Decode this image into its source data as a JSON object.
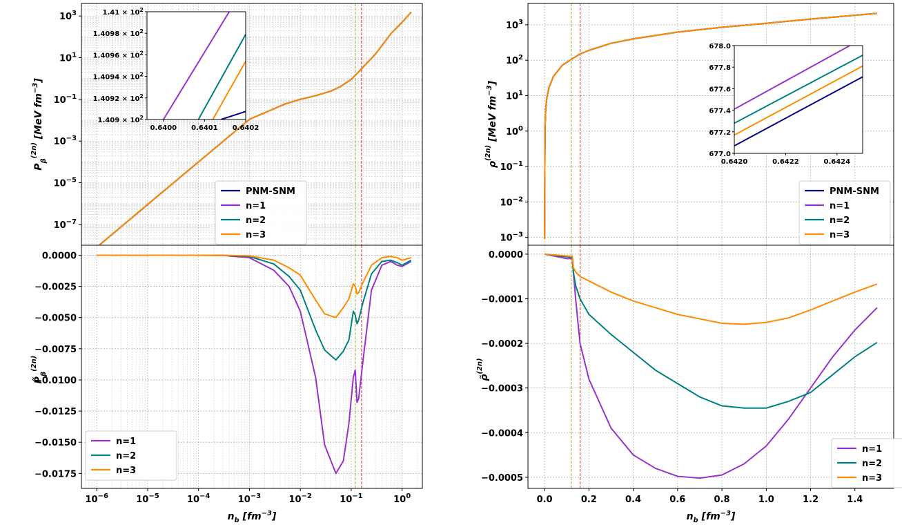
{
  "colors": {
    "pnm_snm": "#00008b",
    "n1": "#9932cc",
    "n2": "#008080",
    "n3": "#ff8c00",
    "vline_olive": "#9aa020",
    "vline_red": "#e02020",
    "grid": "#b0b0b0"
  },
  "vlines_nb": {
    "olive": 0.12,
    "red": 0.16
  },
  "panels": {
    "top_left": {
      "ylabel": "P_β^(2n) [MeV fm^-3]",
      "xlim": [
        5e-07,
        2.5
      ],
      "ylim": [
        1e-08,
        4000
      ],
      "xscale": "log",
      "yscale": "log",
      "ytick_values": [
        1e-07,
        1e-05,
        0.001,
        0.1,
        10,
        1000
      ],
      "ytick_labels": [
        "10-7",
        "10-5",
        "10-3",
        "10-1",
        "101",
        "103"
      ],
      "legend": [
        "PNM-SNM",
        "n=1",
        "n=2",
        "n=3"
      ]
    },
    "bottom_left": {
      "ylabel": "P̃_β^(2n)",
      "xlabel": "n_b [fm^-3]",
      "xlim": [
        5e-07,
        2.5
      ],
      "ylim": [
        -0.0187,
        0.0008
      ],
      "xscale": "log",
      "ytick_labels": [
        "0.0000",
        "−0.0025",
        "−0.0050",
        "−0.0075",
        "−0.0100",
        "−0.0125",
        "−0.0150",
        "−0.0175"
      ],
      "xtick_values": [
        1e-06,
        1e-05,
        0.0001,
        0.001,
        0.01,
        0.1,
        1
      ],
      "xtick_labels": [
        "10-6",
        "10-5",
        "10-4",
        "10-3",
        "10-2",
        "10-1",
        "100"
      ],
      "legend": [
        "n=1",
        "n=2",
        "n=3"
      ]
    },
    "top_right": {
      "ylabel": "ρ^(2n) [MeV fm^-3]",
      "xlim": [
        -0.075,
        1.575
      ],
      "ylim": [
        0.0006,
        4000
      ],
      "yscale": "log",
      "ytick_values": [
        0.001,
        0.01,
        0.1,
        1,
        10,
        100,
        1000
      ],
      "ytick_labels": [
        "10-3",
        "10-2",
        "10-1",
        "100",
        "101",
        "102",
        "103"
      ],
      "legend": [
        "PNM-SNM",
        "n=1",
        "n=2",
        "n=3"
      ]
    },
    "bottom_right": {
      "ylabel": "ρ̃^(2n)",
      "xlabel": "n_b [fm^-3]",
      "xlim": [
        -0.075,
        1.575
      ],
      "ylim": [
        -0.000525,
        2e-05
      ],
      "ytick_labels": [
        "0.0000",
        "−0.0001",
        "−0.0002",
        "−0.0003",
        "−0.0004",
        "−0.0005"
      ],
      "xtick_labels": [
        "0.0",
        "0.2",
        "0.4",
        "0.6",
        "0.8",
        "1.0",
        "1.2",
        "1.4"
      ],
      "legend": [
        "n=1",
        "n=2",
        "n=3"
      ]
    }
  },
  "insets": {
    "left": {
      "xlim": [
        0.63996,
        0.6402
      ],
      "ylim": [
        140.9,
        141.0
      ],
      "xtick_labels": [
        "0.6400",
        "0.6401",
        "0.6402"
      ],
      "ytick_labels": [
        "1.409 × 102",
        "1.4092 × 102",
        "1.4094 × 102",
        "1.4096 × 102",
        "1.4098 × 102",
        "1.41 × 102"
      ]
    },
    "right": {
      "xlim": [
        0.642,
        0.6425
      ],
      "ylim": [
        677.0,
        678.0
      ],
      "xtick_labels": [
        "0.6420",
        "0.6422",
        "0.6424"
      ],
      "ytick_labels": [
        "677.0",
        "677.2",
        "677.4",
        "677.6",
        "677.8",
        "678.0"
      ]
    }
  },
  "chart_data": [
    {
      "type": "line",
      "panel": "top_left",
      "xscale": "log",
      "yscale": "log",
      "series": [
        {
          "name": "PNM-SNM",
          "x": [
            1e-06,
            1e-05,
            0.0001,
            0.001,
            0.005,
            0.01,
            0.02,
            0.04,
            0.06,
            0.1,
            0.15,
            0.3,
            0.6,
            1.0,
            1.5
          ],
          "y": [
            8e-09,
            9e-07,
            0.0001,
            0.011,
            0.06,
            0.1,
            0.15,
            0.25,
            0.4,
            0.9,
            2.5,
            15,
            140,
            500,
            1500
          ]
        },
        {
          "name": "n=1",
          "x": [
            1e-06,
            1e-05,
            0.0001,
            0.001,
            0.005,
            0.01,
            0.02,
            0.04,
            0.06,
            0.1,
            0.15,
            0.3,
            0.6,
            1.0,
            1.5
          ],
          "y": [
            8e-09,
            9e-07,
            0.0001,
            0.011,
            0.06,
            0.1,
            0.15,
            0.25,
            0.4,
            0.9,
            2.5,
            15,
            140,
            500,
            1500
          ]
        },
        {
          "name": "n=2",
          "x": [
            1e-06,
            1e-05,
            0.0001,
            0.001,
            0.005,
            0.01,
            0.02,
            0.04,
            0.06,
            0.1,
            0.15,
            0.3,
            0.6,
            1.0,
            1.5
          ],
          "y": [
            8e-09,
            9e-07,
            0.0001,
            0.011,
            0.06,
            0.1,
            0.15,
            0.25,
            0.4,
            0.9,
            2.5,
            15,
            140,
            500,
            1500
          ]
        },
        {
          "name": "n=3",
          "x": [
            1e-06,
            1e-05,
            0.0001,
            0.001,
            0.005,
            0.01,
            0.02,
            0.04,
            0.06,
            0.1,
            0.15,
            0.3,
            0.6,
            1.0,
            1.5
          ],
          "y": [
            8e-09,
            9e-07,
            0.0001,
            0.011,
            0.06,
            0.1,
            0.15,
            0.25,
            0.4,
            0.9,
            2.5,
            15,
            140,
            500,
            1500
          ]
        }
      ]
    },
    {
      "type": "line",
      "panel": "inset_left",
      "series": [
        {
          "name": "PNM-SNM",
          "x": [
            0.64014,
            0.6402
          ],
          "y": [
            140.9,
            140.9075
          ]
        },
        {
          "name": "n=1",
          "x": [
            0.64,
            0.64016
          ],
          "y": [
            140.9,
            141.0
          ]
        },
        {
          "name": "n=2",
          "x": [
            0.640085,
            0.6402
          ],
          "y": [
            140.9,
            140.979
          ]
        },
        {
          "name": "n=3",
          "x": [
            0.64012,
            0.6402
          ],
          "y": [
            140.9,
            140.954
          ]
        }
      ]
    },
    {
      "type": "line",
      "panel": "bottom_left",
      "xscale": "log",
      "series": [
        {
          "name": "n=1",
          "x": [
            1e-06,
            1e-05,
            0.0001,
            0.0003,
            0.001,
            0.003,
            0.006,
            0.01,
            0.02,
            0.03,
            0.05,
            0.07,
            0.09,
            0.11,
            0.12,
            0.13,
            0.14,
            0.17,
            0.25,
            0.4,
            0.6,
            0.8,
            1.0,
            1.5
          ],
          "y": [
            0,
            0,
            0,
            -2e-05,
            -0.0002,
            -0.0012,
            -0.0025,
            -0.0045,
            -0.0098,
            -0.0152,
            -0.0175,
            -0.0165,
            -0.0135,
            -0.0098,
            -0.0092,
            -0.0118,
            -0.0115,
            -0.0085,
            -0.0028,
            -0.0008,
            -0.0005,
            -0.0008,
            -0.0009,
            -0.0005
          ]
        },
        {
          "name": "n=2",
          "x": [
            1e-06,
            1e-05,
            0.0001,
            0.0003,
            0.001,
            0.003,
            0.006,
            0.01,
            0.02,
            0.03,
            0.05,
            0.07,
            0.09,
            0.11,
            0.12,
            0.13,
            0.14,
            0.17,
            0.25,
            0.4,
            0.6,
            0.8,
            1.0,
            1.5
          ],
          "y": [
            0,
            0,
            0,
            -1e-05,
            -0.0001,
            -0.0007,
            -0.0017,
            -0.0028,
            -0.006,
            -0.0076,
            -0.0084,
            -0.0077,
            -0.0068,
            -0.0045,
            -0.0048,
            -0.0055,
            -0.0052,
            -0.0038,
            -0.0015,
            -0.0005,
            -0.0004,
            -0.0006,
            -0.0008,
            -0.0004
          ]
        },
        {
          "name": "n=3",
          "x": [
            1e-06,
            1e-05,
            0.0001,
            0.0003,
            0.001,
            0.003,
            0.006,
            0.01,
            0.02,
            0.03,
            0.05,
            0.07,
            0.09,
            0.11,
            0.12,
            0.13,
            0.14,
            0.17,
            0.25,
            0.4,
            0.6,
            0.8,
            1.0,
            1.5
          ],
          "y": [
            0,
            0,
            0,
            -1e-05,
            -5e-05,
            -0.0004,
            -0.001,
            -0.0016,
            -0.0036,
            -0.0047,
            -0.005,
            -0.0042,
            -0.0035,
            -0.0023,
            -0.0025,
            -0.0031,
            -0.003,
            -0.0022,
            -0.0008,
            -0.0002,
            -0.0001,
            -0.0002,
            -0.0004,
            -0.0002
          ]
        }
      ]
    },
    {
      "type": "line",
      "panel": "top_right",
      "yscale": "log",
      "series": [
        {
          "name": "PNM-SNM",
          "x": [
            0.0,
            0.0,
            0.002,
            0.005,
            0.01,
            0.02,
            0.04,
            0.08,
            0.12,
            0.16,
            0.2,
            0.3,
            0.4,
            0.6,
            0.8,
            1.0,
            1.2,
            1.5
          ],
          "y": [
            0.0009,
            0.001,
            1.2,
            4,
            8.5,
            17,
            35,
            72,
            105,
            150,
            190,
            300,
            400,
            620,
            850,
            1100,
            1450,
            2100
          ]
        },
        {
          "name": "n=1",
          "x": [
            0.0,
            0.0,
            0.002,
            0.005,
            0.01,
            0.02,
            0.04,
            0.08,
            0.12,
            0.16,
            0.2,
            0.3,
            0.4,
            0.6,
            0.8,
            1.0,
            1.2,
            1.5
          ],
          "y": [
            0.0009,
            0.001,
            1.2,
            4,
            8.5,
            17,
            35,
            72,
            105,
            150,
            190,
            300,
            400,
            620,
            850,
            1100,
            1450,
            2100
          ]
        },
        {
          "name": "n=2",
          "x": [
            0.0,
            0.0,
            0.002,
            0.005,
            0.01,
            0.02,
            0.04,
            0.08,
            0.12,
            0.16,
            0.2,
            0.3,
            0.4,
            0.6,
            0.8,
            1.0,
            1.2,
            1.5
          ],
          "y": [
            0.0009,
            0.001,
            1.2,
            4,
            8.5,
            17,
            35,
            72,
            105,
            150,
            190,
            300,
            400,
            620,
            850,
            1100,
            1450,
            2100
          ]
        },
        {
          "name": "n=3",
          "x": [
            0.0,
            0.0,
            0.002,
            0.005,
            0.01,
            0.02,
            0.04,
            0.08,
            0.12,
            0.16,
            0.2,
            0.3,
            0.4,
            0.6,
            0.8,
            1.0,
            1.2,
            1.5
          ],
          "y": [
            0.0009,
            0.001,
            1.2,
            4,
            8.5,
            17,
            35,
            72,
            105,
            150,
            190,
            300,
            400,
            620,
            850,
            1100,
            1450,
            2100
          ]
        }
      ]
    },
    {
      "type": "line",
      "panel": "inset_right",
      "series": [
        {
          "name": "PNM-SNM",
          "x": [
            0.642,
            0.6425
          ],
          "y": [
            677.07,
            677.71
          ]
        },
        {
          "name": "n=1",
          "x": [
            0.642,
            0.64245
          ],
          "y": [
            677.41,
            678.0
          ]
        },
        {
          "name": "n=2",
          "x": [
            0.642,
            0.6425
          ],
          "y": [
            677.28,
            677.91
          ]
        },
        {
          "name": "n=3",
          "x": [
            0.642,
            0.6425
          ],
          "y": [
            677.17,
            677.81
          ]
        }
      ]
    },
    {
      "type": "line",
      "panel": "bottom_right",
      "series": [
        {
          "name": "n=1",
          "x": [
            0.0,
            0.05,
            0.1,
            0.125,
            0.13,
            0.14,
            0.16,
            0.2,
            0.3,
            0.4,
            0.5,
            0.6,
            0.7,
            0.8,
            0.9,
            1.0,
            1.1,
            1.2,
            1.3,
            1.4,
            1.5
          ],
          "y": [
            0,
            -5e-06,
            -1e-05,
            -1e-05,
            -4e-05,
            -0.0001,
            -0.0002,
            -0.00028,
            -0.00039,
            -0.00045,
            -0.00048,
            -0.000498,
            -0.000502,
            -0.000495,
            -0.00047,
            -0.00043,
            -0.00037,
            -0.0003,
            -0.00023,
            -0.00017,
            -0.00012
          ]
        },
        {
          "name": "n=2",
          "x": [
            0.0,
            0.05,
            0.1,
            0.125,
            0.13,
            0.14,
            0.16,
            0.2,
            0.3,
            0.4,
            0.5,
            0.6,
            0.7,
            0.8,
            0.9,
            1.0,
            1.1,
            1.2,
            1.3,
            1.4,
            1.5
          ],
          "y": [
            0,
            -3e-06,
            -6e-06,
            -7e-06,
            -4e-05,
            -7e-05,
            -0.0001,
            -0.000135,
            -0.00018,
            -0.00022,
            -0.00026,
            -0.00029,
            -0.00032,
            -0.00034,
            -0.000345,
            -0.000345,
            -0.00033,
            -0.00031,
            -0.00027,
            -0.00023,
            -0.000198
          ]
        },
        {
          "name": "n=3",
          "x": [
            0.0,
            0.05,
            0.1,
            0.125,
            0.13,
            0.14,
            0.16,
            0.2,
            0.3,
            0.4,
            0.5,
            0.6,
            0.7,
            0.8,
            0.9,
            1.0,
            1.1,
            1.2,
            1.3,
            1.4,
            1.5
          ],
          "y": [
            0,
            -2e-06,
            -4e-06,
            -5e-06,
            -3e-05,
            -4e-05,
            -5e-05,
            -6e-05,
            -8.5e-05,
            -0.000105,
            -0.00012,
            -0.000135,
            -0.000145,
            -0.000155,
            -0.000157,
            -0.000153,
            -0.000143,
            -0.000125,
            -0.000105,
            -8.5e-05,
            -6.7e-05
          ]
        }
      ]
    }
  ]
}
